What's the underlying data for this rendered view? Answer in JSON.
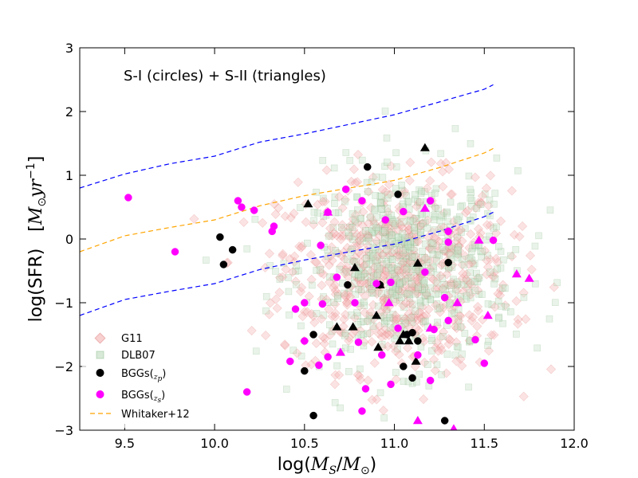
{
  "chart_data": {
    "type": "scatter",
    "title": "",
    "annotation": "S-I (circles) + S-II (triangles)",
    "xlabel": {
      "prefix": "log(",
      "math": "M",
      "sub": "S",
      "slash": "/",
      "math2": "M",
      "sub2": "⊙",
      "suffix": ")"
    },
    "ylabel": {
      "prefix": "log(SFR)",
      "bracket_open": "[",
      "math": "M",
      "sub": "⊙",
      "unit": "yr",
      "exp": "−1",
      "bracket_close": "]"
    },
    "xlim": [
      9.25,
      12.0
    ],
    "ylim": [
      -3,
      3
    ],
    "xticks": [
      9.5,
      10.0,
      10.5,
      11.0,
      11.5,
      12.0
    ],
    "xtick_labels": [
      "9.5",
      "10.0",
      "10.5",
      "11.0",
      "11.5",
      "12.0"
    ],
    "yticks": [
      -3,
      -2,
      -1,
      0,
      1,
      2,
      3
    ],
    "ytick_labels": [
      "−3",
      "−2",
      "−1",
      "0",
      "1",
      "2",
      "3"
    ],
    "legend": {
      "position": "lower-left",
      "entries": [
        {
          "label": "G11",
          "marker": "diamond",
          "color": "#f4b0b0"
        },
        {
          "label": "DLB07",
          "marker": "square",
          "color": "#c8e0c8"
        },
        {
          "label": "BGGs(",
          "sub": "z",
          "subsub": "p",
          "suffix": ")",
          "marker": "circle",
          "color": "#000000"
        },
        {
          "label": "BGGs(",
          "sub": "z",
          "subsub": "s",
          "suffix": ")",
          "marker": "circle",
          "color": "#ff00ff"
        },
        {
          "label": "Whitaker+12",
          "marker": "dashed-line",
          "color": "#ffa500"
        }
      ]
    },
    "colors": {
      "g11": "#f4b0b0",
      "dlb07": "#c8e0c8",
      "bggs_zp": "#000000",
      "bggs_zs": "#ff00ff",
      "whitaker": "#ffa500",
      "envelope": "#0000ff"
    },
    "series": [
      {
        "name": "Whitaker+12",
        "style": "dashed",
        "color": "#ffa500",
        "x": [
          9.25,
          9.5,
          9.75,
          10.0,
          10.25,
          10.5,
          10.75,
          11.0,
          11.25,
          11.5,
          11.55
        ],
        "y": [
          -0.2,
          0.05,
          0.18,
          0.3,
          0.52,
          0.68,
          0.8,
          0.92,
          1.12,
          1.35,
          1.42
        ]
      },
      {
        "name": "Whitaker+12 upper",
        "style": "dashed",
        "color": "#0000ff",
        "x": [
          9.25,
          9.5,
          9.75,
          10.0,
          10.25,
          10.5,
          10.75,
          11.0,
          11.25,
          11.5,
          11.55
        ],
        "y": [
          0.8,
          1.02,
          1.18,
          1.3,
          1.52,
          1.65,
          1.8,
          1.95,
          2.15,
          2.35,
          2.42
        ]
      },
      {
        "name": "Whitaker+12 lower",
        "style": "dashed",
        "color": "#0000ff",
        "x": [
          9.25,
          9.5,
          9.75,
          10.0,
          10.25,
          10.5,
          10.75,
          11.0,
          11.25,
          11.5,
          11.55
        ],
        "y": [
          -1.2,
          -0.95,
          -0.82,
          -0.7,
          -0.48,
          -0.33,
          -0.2,
          -0.08,
          0.12,
          0.35,
          0.42
        ]
      },
      {
        "name": "BGGs(zp) S-I",
        "marker": "circle",
        "color": "#000000",
        "x": [
          10.03,
          10.05,
          10.1,
          10.5,
          10.55,
          10.55,
          10.74,
          10.85,
          10.92,
          11.02,
          11.05,
          11.07,
          11.1,
          11.1,
          11.13,
          11.28,
          11.3
        ],
        "y": [
          0.03,
          -0.4,
          -0.17,
          -2.07,
          -1.5,
          -2.77,
          -0.72,
          1.13,
          -0.72,
          0.7,
          -2.0,
          -1.5,
          -1.47,
          -2.18,
          -1.6,
          -2.85,
          -0.37
        ]
      },
      {
        "name": "BGGs(zp) S-II",
        "marker": "triangle",
        "color": "#000000",
        "x": [
          10.52,
          10.68,
          10.78,
          10.77,
          10.9,
          10.91,
          10.92,
          11.03,
          11.05,
          11.08,
          11.12,
          11.13,
          11.17
        ],
        "y": [
          0.55,
          -1.38,
          -0.45,
          -1.38,
          -1.2,
          -1.7,
          -0.72,
          -1.6,
          -1.5,
          -1.6,
          -1.92,
          -0.38,
          1.43
        ]
      },
      {
        "name": "BGGs(zs) S-I",
        "marker": "circle",
        "color": "#ff00ff",
        "x": [
          9.52,
          9.78,
          10.18,
          10.13,
          10.15,
          10.22,
          10.32,
          10.33,
          10.42,
          10.45,
          10.5,
          10.5,
          10.58,
          10.59,
          10.6,
          10.63,
          10.63,
          10.68,
          10.73,
          10.78,
          10.8,
          10.82,
          10.82,
          10.84,
          10.9,
          10.93,
          10.95,
          10.98,
          10.98,
          11.02,
          11.05,
          11.13,
          11.17,
          11.2,
          11.2,
          11.22,
          11.28,
          11.3,
          11.3,
          11.3,
          11.45,
          11.5,
          11.55
        ],
        "y": [
          0.65,
          -0.2,
          -2.4,
          0.6,
          0.5,
          0.45,
          0.12,
          0.2,
          -1.92,
          -1.1,
          -1.6,
          -1.0,
          -1.98,
          -0.1,
          -1.02,
          -1.85,
          0.42,
          -0.6,
          0.78,
          -1.0,
          -1.62,
          0.6,
          -2.7,
          -2.35,
          -0.7,
          -1.82,
          0.3,
          -2.28,
          -0.68,
          -1.4,
          0.43,
          -1.82,
          -0.52,
          -2.22,
          0.6,
          -1.42,
          -0.92,
          -1.28,
          -0.05,
          0.12,
          -1.58,
          -1.95,
          -0.02
        ]
      },
      {
        "name": "BGGs(zs) S-II",
        "marker": "triangle",
        "color": "#ff00ff",
        "x": [
          10.63,
          10.7,
          10.97,
          11.13,
          11.17,
          11.2,
          11.35,
          11.47,
          11.52,
          11.68,
          11.75,
          11.33
        ],
        "y": [
          0.42,
          -1.78,
          -1.0,
          -2.85,
          0.48,
          -1.4,
          -1.0,
          -0.02,
          -1.2,
          -0.55,
          -0.62,
          -2.98
        ]
      }
    ],
    "cloud": {
      "g11": {
        "marker": "diamond",
        "color": "#f4b0b0",
        "center_x": 11.0,
        "center_y": -0.55,
        "spread_x": 0.32,
        "spread_y": 0.75,
        "count": 650
      },
      "dlb07": {
        "marker": "square",
        "color": "#c8e0c8",
        "center_x": 11.08,
        "center_y": -0.45,
        "spread_x": 0.3,
        "spread_y": 0.75,
        "count": 650
      }
    }
  }
}
